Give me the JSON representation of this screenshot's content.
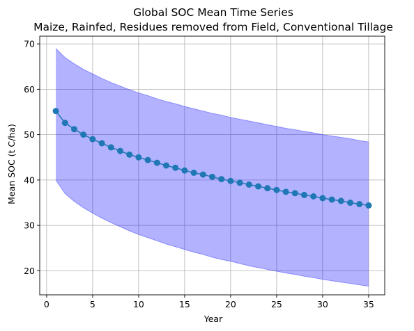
{
  "chart_data": {
    "type": "line",
    "title": "Global SOC Mean Time Series",
    "subtitle": "Maize, Rainfed, Residues removed from Field, Conventional Tillage",
    "xlabel": "Year",
    "ylabel": "Mean SOC (t C/ha)",
    "xlim": [
      -0.75,
      36.75
    ],
    "ylim": [
      14.7,
      71.7
    ],
    "xticks": [
      0,
      5,
      10,
      15,
      20,
      25,
      30,
      35
    ],
    "yticks": [
      20,
      30,
      40,
      50,
      60,
      70
    ],
    "grid": true,
    "colors": {
      "line": "#1f77b4",
      "band": "#0000ff"
    },
    "series": [
      {
        "x": [
          1,
          2,
          3,
          4,
          5,
          6,
          7,
          8,
          9,
          10,
          11,
          12,
          13,
          14,
          15,
          16,
          17,
          18,
          19,
          20,
          21,
          22,
          23,
          24,
          25,
          26,
          27,
          28,
          29,
          30,
          31,
          32,
          33,
          34,
          35
        ],
        "values": [
          55.2,
          52.6,
          51.2,
          50.0,
          49.0,
          48.1,
          47.2,
          46.4,
          45.6,
          45.0,
          44.4,
          43.8,
          43.2,
          42.7,
          42.1,
          41.6,
          41.2,
          40.7,
          40.2,
          39.8,
          39.4,
          39.0,
          38.6,
          38.2,
          37.8,
          37.4,
          37.1,
          36.7,
          36.4,
          36.0,
          35.7,
          35.4,
          35.0,
          34.7,
          34.4
        ],
        "lower": [
          40.0,
          37.0,
          35.3,
          33.9,
          32.7,
          31.6,
          30.6,
          29.7,
          28.8,
          28.0,
          27.3,
          26.6,
          25.9,
          25.3,
          24.7,
          24.1,
          23.6,
          23.0,
          22.5,
          22.1,
          21.6,
          21.1,
          20.7,
          20.3,
          19.9,
          19.5,
          19.2,
          18.8,
          18.5,
          18.1,
          17.8,
          17.5,
          17.2,
          16.9,
          16.6
        ],
        "upper": [
          69.0,
          67.0,
          65.6,
          64.4,
          63.4,
          62.4,
          61.5,
          60.7,
          59.9,
          59.2,
          58.6,
          57.9,
          57.3,
          56.8,
          56.2,
          55.7,
          55.2,
          54.7,
          54.3,
          53.8,
          53.4,
          53.0,
          52.6,
          52.2,
          51.8,
          51.4,
          51.1,
          50.7,
          50.4,
          50.0,
          49.7,
          49.4,
          49.1,
          48.7,
          48.4
        ]
      }
    ]
  }
}
